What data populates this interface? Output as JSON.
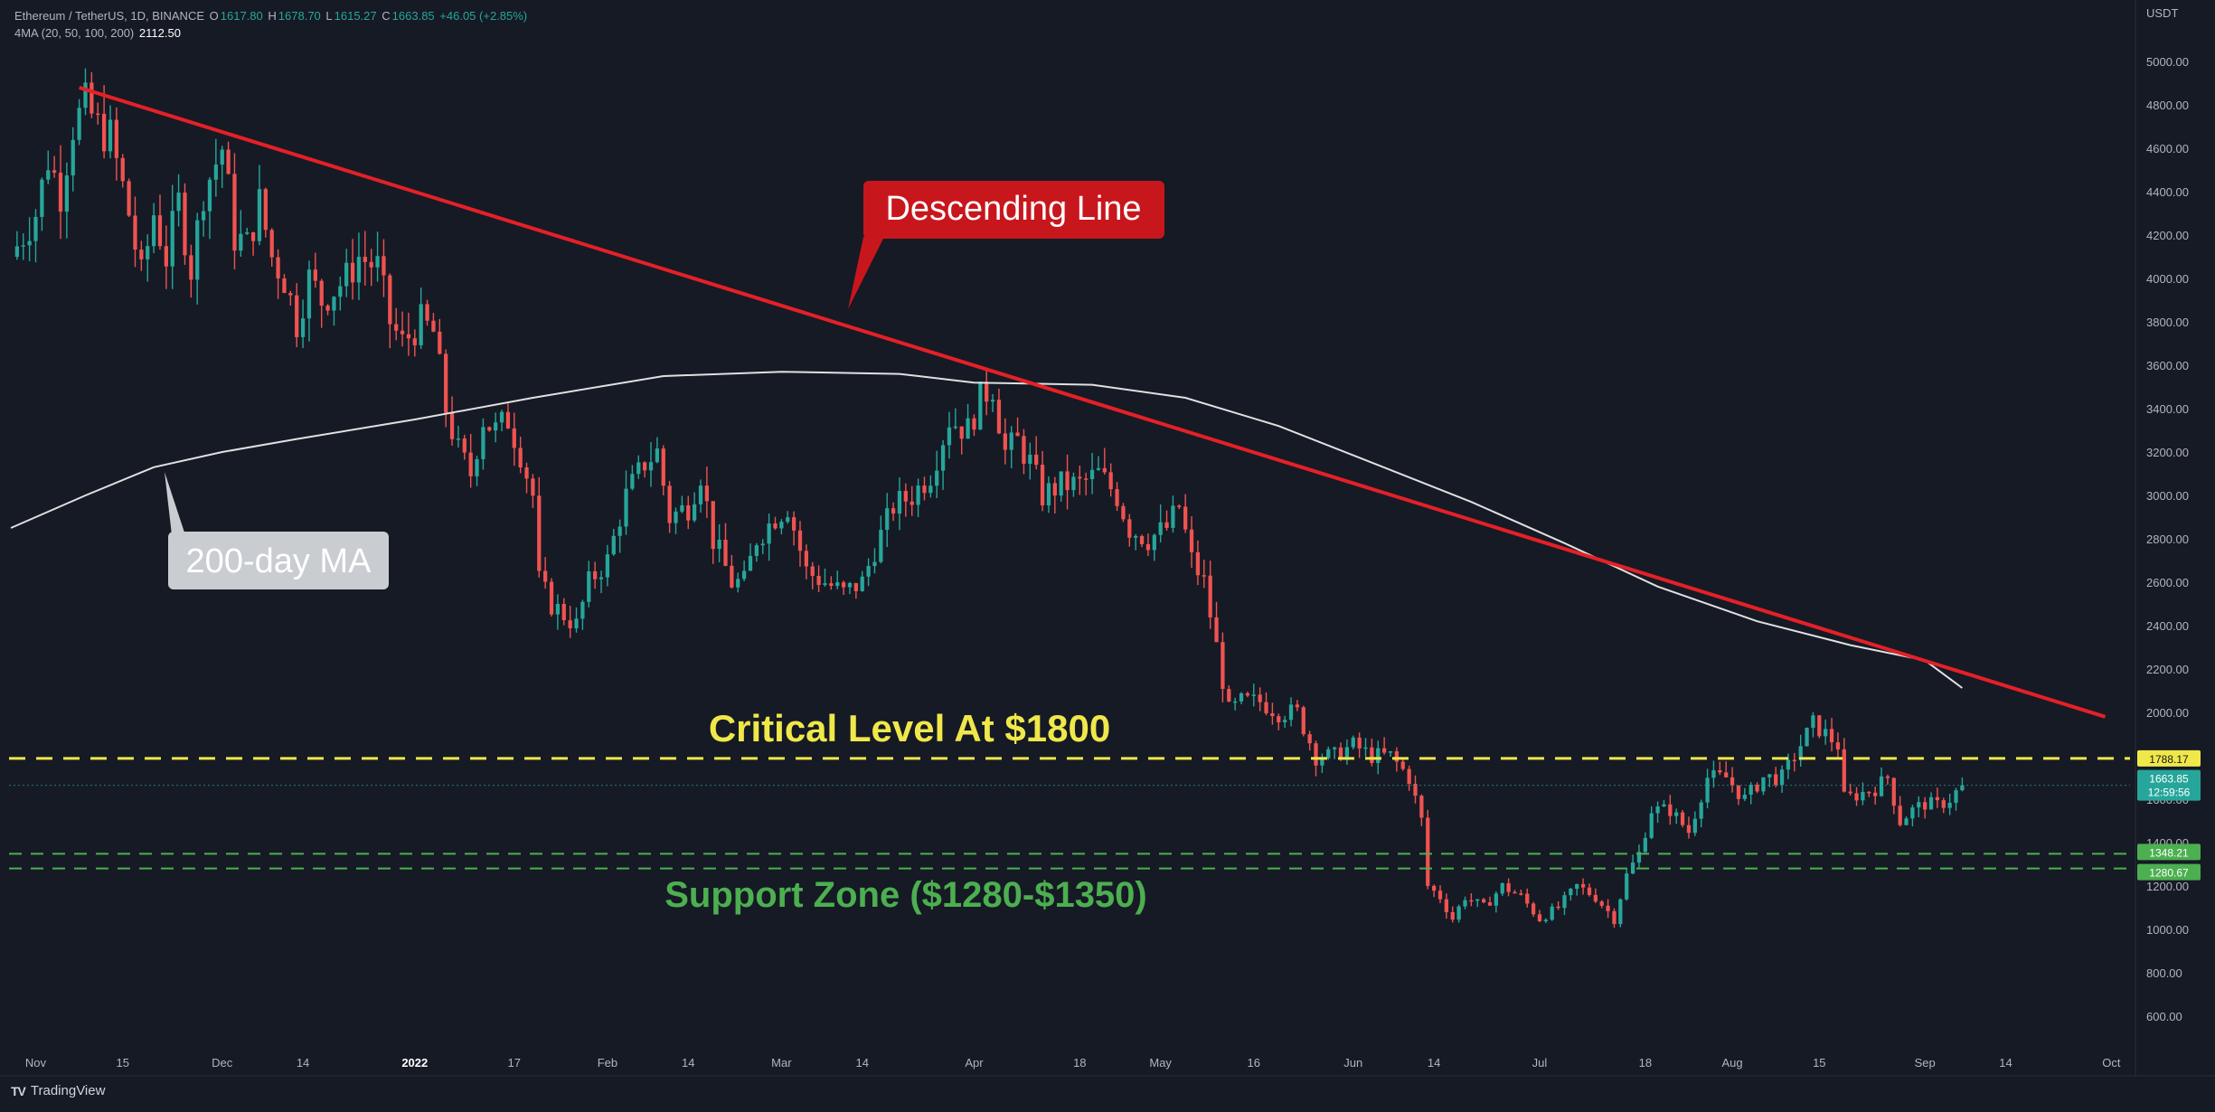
{
  "header": {
    "symbol": "Ethereum / TetherUS, 1D, BINANCE",
    "o_label": "O",
    "o": "1617.80",
    "h_label": "H",
    "h": "1678.70",
    "l_label": "L",
    "l": "1615.27",
    "c_label": "C",
    "c": "1663.85",
    "change": "+46.05 (+2.85%)",
    "ma_label": "4MA (20, 50, 100, 200)",
    "ma_value": "2112.50"
  },
  "brand": {
    "name": "TradingView",
    "logo": "TV"
  },
  "colors": {
    "background": "#161a25",
    "up": "#26a69a",
    "down": "#ef5350",
    "trendline": "#e52027",
    "ma": "#e0e0e0",
    "critical": "#f0e84a",
    "support": "#4caf50"
  },
  "chart_data": {
    "type": "candlestick",
    "title": "",
    "ylabel": "USDT",
    "ylim": [
      450,
      5200
    ],
    "y_ticks": [
      "5000.00",
      "4800.00",
      "4600.00",
      "4400.00",
      "4200.00",
      "4000.00",
      "3800.00",
      "3600.00",
      "3400.00",
      "3200.00",
      "3000.00",
      "2800.00",
      "2600.00",
      "2400.00",
      "2200.00",
      "2000.00",
      "1800.00",
      "1600.00",
      "1400.00",
      "1200.00",
      "1000.00",
      "800.00",
      "600.00"
    ],
    "y_tick_values": [
      5000,
      4800,
      4600,
      4400,
      4200,
      4000,
      3800,
      3600,
      3400,
      3200,
      3000,
      2800,
      2600,
      2400,
      2200,
      2000,
      1800,
      1600,
      1400,
      1200,
      1000,
      800,
      600
    ],
    "x_ticks": [
      {
        "label": "Nov",
        "date": "2021-11-01",
        "bold": false
      },
      {
        "label": "15",
        "date": "2021-11-15",
        "bold": false
      },
      {
        "label": "Dec",
        "date": "2021-12-01",
        "bold": false
      },
      {
        "label": "14",
        "date": "2021-12-14",
        "bold": false
      },
      {
        "label": "2022",
        "date": "2022-01-01",
        "bold": true
      },
      {
        "label": "17",
        "date": "2022-01-17",
        "bold": false
      },
      {
        "label": "Feb",
        "date": "2022-02-01",
        "bold": false
      },
      {
        "label": "14",
        "date": "2022-02-14",
        "bold": false
      },
      {
        "label": "Mar",
        "date": "2022-03-01",
        "bold": false
      },
      {
        "label": "14",
        "date": "2022-03-14",
        "bold": false
      },
      {
        "label": "Apr",
        "date": "2022-04-01",
        "bold": false
      },
      {
        "label": "18",
        "date": "2022-04-18",
        "bold": false
      },
      {
        "label": "May",
        "date": "2022-05-01",
        "bold": false
      },
      {
        "label": "16",
        "date": "2022-05-16",
        "bold": false
      },
      {
        "label": "Jun",
        "date": "2022-06-01",
        "bold": false
      },
      {
        "label": "14",
        "date": "2022-06-14",
        "bold": false
      },
      {
        "label": "Jul",
        "date": "2022-07-01",
        "bold": false
      },
      {
        "label": "18",
        "date": "2022-07-18",
        "bold": false
      },
      {
        "label": "Aug",
        "date": "2022-08-01",
        "bold": false
      },
      {
        "label": "15",
        "date": "2022-08-15",
        "bold": false
      },
      {
        "label": "Sep",
        "date": "2022-09-01",
        "bold": false
      },
      {
        "label": "14",
        "date": "2022-09-14",
        "bold": false
      },
      {
        "label": "Oct",
        "date": "2022-10-01",
        "bold": false
      }
    ],
    "x_range": [
      "2021-10-28",
      "2022-10-04"
    ],
    "closes": [
      [
        "2021-10-28",
        4100
      ],
      [
        "2021-11-01",
        4300
      ],
      [
        "2021-11-03",
        4550
      ],
      [
        "2021-11-05",
        4400
      ],
      [
        "2021-11-07",
        4700
      ],
      [
        "2021-11-09",
        4800
      ],
      [
        "2021-11-11",
        4700
      ],
      [
        "2021-11-13",
        4650
      ],
      [
        "2021-11-16",
        4300
      ],
      [
        "2021-11-18",
        4000
      ],
      [
        "2021-11-20",
        4300
      ],
      [
        "2021-11-22",
        4100
      ],
      [
        "2021-11-24",
        4350
      ],
      [
        "2021-11-26",
        4050
      ],
      [
        "2021-11-28",
        4400
      ],
      [
        "2021-12-01",
        4600
      ],
      [
        "2021-12-03",
        4200
      ],
      [
        "2021-12-05",
        4150
      ],
      [
        "2021-12-07",
        4350
      ],
      [
        "2021-12-09",
        4100
      ],
      [
        "2021-12-11",
        4000
      ],
      [
        "2021-12-13",
        3800
      ],
      [
        "2021-12-15",
        4000
      ],
      [
        "2021-12-17",
        3900
      ],
      [
        "2021-12-19",
        3950
      ],
      [
        "2021-12-21",
        4000
      ],
      [
        "2021-12-23",
        4100
      ],
      [
        "2021-12-26",
        4050
      ],
      [
        "2021-12-28",
        3800
      ],
      [
        "2021-12-30",
        3700
      ],
      [
        "2022-01-02",
        3800
      ],
      [
        "2022-01-04",
        3750
      ],
      [
        "2022-01-06",
        3400
      ],
      [
        "2022-01-08",
        3200
      ],
      [
        "2022-01-10",
        3100
      ],
      [
        "2022-01-12",
        3350
      ],
      [
        "2022-01-14",
        3300
      ],
      [
        "2022-01-16",
        3350
      ],
      [
        "2022-01-18",
        3200
      ],
      [
        "2022-01-20",
        3000
      ],
      [
        "2022-01-21",
        2600
      ],
      [
        "2022-01-23",
        2500
      ],
      [
        "2022-01-25",
        2450
      ],
      [
        "2022-01-27",
        2400
      ],
      [
        "2022-01-29",
        2600
      ],
      [
        "2022-02-01",
        2700
      ],
      [
        "2022-02-04",
        3000
      ],
      [
        "2022-02-07",
        3150
      ],
      [
        "2022-02-09",
        3200
      ],
      [
        "2022-02-11",
        2900
      ],
      [
        "2022-02-14",
        2950
      ],
      [
        "2022-02-16",
        3100
      ],
      [
        "2022-02-18",
        2800
      ],
      [
        "2022-02-21",
        2600
      ],
      [
        "2022-02-23",
        2600
      ],
      [
        "2022-02-25",
        2800
      ],
      [
        "2022-02-28",
        2900
      ],
      [
        "2022-03-02",
        2950
      ],
      [
        "2022-03-05",
        2650
      ],
      [
        "2022-03-08",
        2600
      ],
      [
        "2022-03-11",
        2550
      ],
      [
        "2022-03-14",
        2600
      ],
      [
        "2022-03-16",
        2750
      ],
      [
        "2022-03-19",
        2950
      ],
      [
        "2022-03-22",
        3000
      ],
      [
        "2022-03-25",
        3100
      ],
      [
        "2022-03-28",
        3350
      ],
      [
        "2022-03-31",
        3300
      ],
      [
        "2022-04-02",
        3450
      ],
      [
        "2022-04-04",
        3500
      ],
      [
        "2022-04-06",
        3200
      ],
      [
        "2022-04-08",
        3250
      ],
      [
        "2022-04-10",
        3150
      ],
      [
        "2022-04-12",
        3000
      ],
      [
        "2022-04-15",
        3050
      ],
      [
        "2022-04-18",
        3050
      ],
      [
        "2022-04-21",
        3100
      ],
      [
        "2022-04-24",
        3000
      ],
      [
        "2022-04-26",
        2850
      ],
      [
        "2022-04-29",
        2800
      ],
      [
        "2022-05-02",
        2850
      ],
      [
        "2022-05-04",
        2950
      ],
      [
        "2022-05-06",
        2700
      ],
      [
        "2022-05-08",
        2600
      ],
      [
        "2022-05-10",
        2300
      ],
      [
        "2022-05-12",
        2000
      ],
      [
        "2022-05-14",
        2050
      ],
      [
        "2022-05-17",
        2050
      ],
      [
        "2022-05-20",
        2000
      ],
      [
        "2022-05-23",
        2000
      ],
      [
        "2022-05-26",
        1800
      ],
      [
        "2022-05-29",
        1800
      ],
      [
        "2022-06-01",
        1850
      ],
      [
        "2022-06-04",
        1800
      ],
      [
        "2022-06-07",
        1800
      ],
      [
        "2022-06-10",
        1700
      ],
      [
        "2022-06-12",
        1500
      ],
      [
        "2022-06-13",
        1200
      ],
      [
        "2022-06-15",
        1150
      ],
      [
        "2022-06-17",
        1050
      ],
      [
        "2022-06-19",
        1150
      ],
      [
        "2022-06-22",
        1100
      ],
      [
        "2022-06-25",
        1200
      ],
      [
        "2022-06-28",
        1150
      ],
      [
        "2022-07-01",
        1050
      ],
      [
        "2022-07-04",
        1100
      ],
      [
        "2022-07-07",
        1200
      ],
      [
        "2022-07-10",
        1150
      ],
      [
        "2022-07-13",
        1050
      ],
      [
        "2022-07-15",
        1250
      ],
      [
        "2022-07-17",
        1350
      ],
      [
        "2022-07-19",
        1550
      ],
      [
        "2022-07-22",
        1550
      ],
      [
        "2022-07-25",
        1450
      ],
      [
        "2022-07-28",
        1700
      ],
      [
        "2022-07-31",
        1700
      ],
      [
        "2022-08-03",
        1600
      ],
      [
        "2022-08-06",
        1700
      ],
      [
        "2022-08-09",
        1700
      ],
      [
        "2022-08-12",
        1850
      ],
      [
        "2022-08-14",
        1950
      ],
      [
        "2022-08-16",
        1900
      ],
      [
        "2022-08-18",
        1850
      ],
      [
        "2022-08-19",
        1600
      ],
      [
        "2022-08-21",
        1620
      ],
      [
        "2022-08-24",
        1650
      ],
      [
        "2022-08-26",
        1700
      ],
      [
        "2022-08-28",
        1500
      ],
      [
        "2022-08-30",
        1550
      ],
      [
        "2022-09-01",
        1580
      ],
      [
        "2022-09-03",
        1570
      ],
      [
        "2022-09-05",
        1600
      ],
      [
        "2022-09-07",
        1663.85
      ]
    ],
    "ma200": [
      [
        "2021-10-28",
        2850
      ],
      [
        "2021-11-09",
        3000
      ],
      [
        "2021-11-20",
        3130
      ],
      [
        "2021-12-01",
        3200
      ],
      [
        "2021-12-13",
        3260
      ],
      [
        "2022-01-01",
        3350
      ],
      [
        "2022-01-20",
        3450
      ],
      [
        "2022-02-10",
        3550
      ],
      [
        "2022-03-01",
        3570
      ],
      [
        "2022-03-20",
        3560
      ],
      [
        "2022-04-01",
        3520
      ],
      [
        "2022-04-20",
        3510
      ],
      [
        "2022-05-05",
        3450
      ],
      [
        "2022-05-20",
        3320
      ],
      [
        "2022-06-05",
        3140
      ],
      [
        "2022-06-20",
        2970
      ],
      [
        "2022-07-05",
        2780
      ],
      [
        "2022-07-20",
        2580
      ],
      [
        "2022-08-05",
        2420
      ],
      [
        "2022-08-20",
        2310
      ],
      [
        "2022-09-01",
        2240
      ],
      [
        "2022-09-07",
        2112.5
      ]
    ],
    "trendline": {
      "start": [
        "2021-11-08",
        4880
      ],
      "end": [
        "2022-09-30",
        1980
      ]
    },
    "critical_level": {
      "value": 1788.17,
      "tag": "1788.17"
    },
    "support_zone": {
      "upper": 1348.21,
      "lower": 1280.67,
      "upper_tag": "1348.21",
      "lower_tag": "1280.67"
    },
    "last_price": {
      "value": 1663.85,
      "tag": "1663.85",
      "countdown": "12:59:56"
    },
    "annotations": {
      "descending": "Descending Line",
      "ma": "200-day MA",
      "critical": "Critical Level At $1800",
      "support": "Support Zone ($1280-$1350)"
    }
  }
}
